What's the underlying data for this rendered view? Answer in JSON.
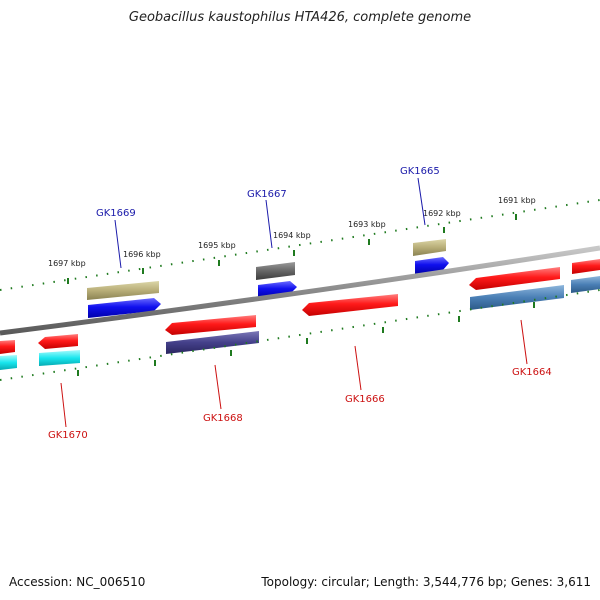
{
  "title": "Geobacillus kaustophilus HTA426, complete genome",
  "footer": {
    "accession": "Accession: NC_006510",
    "summary": "Topology: circular; Length: 3,544,776 bp; Genes: 3,611"
  },
  "colors": {
    "backbone": "#8a8a8a",
    "tick": "#1f7a1f",
    "forward_label": "#1a1aaa",
    "reverse_label": "#cc1111"
  },
  "scale_labels": [
    "1691 kbp",
    "1692 kbp",
    "1693 kbp",
    "1694 kbp",
    "1695 kbp",
    "1696 kbp",
    "1697 kbp"
  ],
  "gene_labels": {
    "forward": [
      "GK1665",
      "GK1667",
      "GK1669"
    ],
    "reverse": [
      "GK1664",
      "GK1666",
      "GK1668",
      "GK1670"
    ]
  },
  "feature_colors": [
    "#ff1a1a",
    "#1010ee",
    "#b8ae78",
    "#666666",
    "#4a7fb5",
    "#44408a",
    "#19e6ee"
  ]
}
